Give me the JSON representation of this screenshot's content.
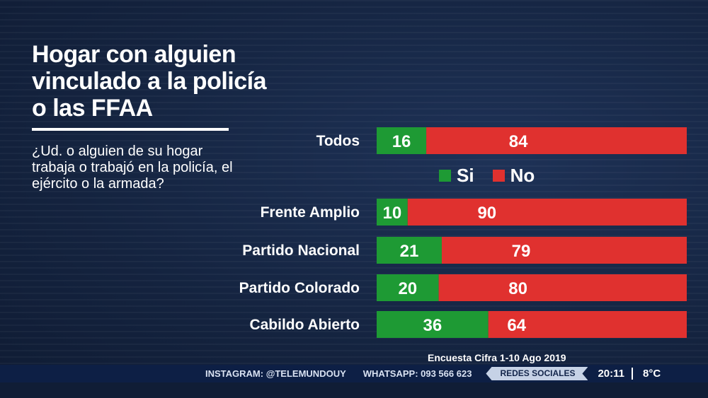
{
  "title": "Hogar con alguien\nvinculado a la policía\n o las FFAA",
  "question": "¿Ud. o alguien de su hogar trabaja o trabajó en la policía, el ejército o la armada?",
  "legend": [
    {
      "label": "Si",
      "color": "#1e9a34"
    },
    {
      "label": "No",
      "color": "#e0312f"
    }
  ],
  "chart_data": {
    "type": "bar",
    "orientation": "horizontal",
    "stacked": true,
    "categories": [
      "Todos",
      "Frente Amplio",
      "Partido Nacional",
      "Partido Colorado",
      "Cabildo Abierto"
    ],
    "series": [
      {
        "name": "Si",
        "values": [
          16,
          10,
          21,
          20,
          36
        ],
        "color": "#1e9a34"
      },
      {
        "name": "No",
        "values": [
          84,
          90,
          79,
          80,
          64
        ],
        "color": "#e0312f"
      }
    ],
    "xlim": [
      0,
      100
    ],
    "title": "Hogar con alguien vinculado a la policía o las FFAA",
    "legend_position": "between first and second bar"
  },
  "source": "Encuesta Cifra  1-10 Ago 2019",
  "ticker": {
    "instagram": "INSTAGRAM: @TELEMUNDOUY",
    "whatsapp": "WHATSAPP: 093 566 623",
    "redes": "REDES SOCIALES",
    "time": "20:11",
    "temp": "8°C"
  }
}
